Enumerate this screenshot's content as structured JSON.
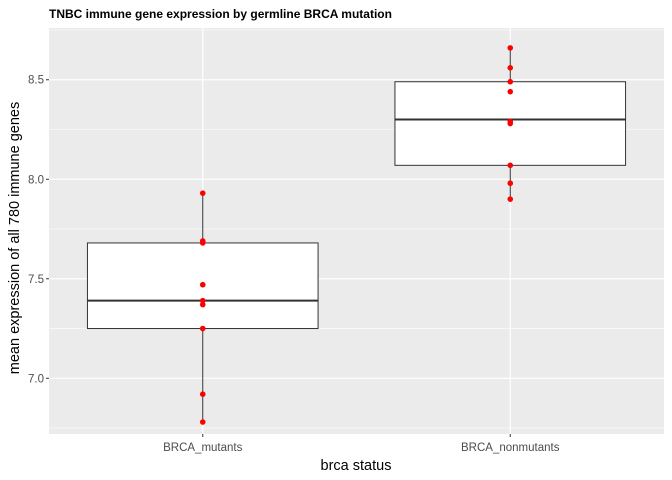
{
  "chart_data": {
    "type": "boxplot",
    "title": "TNBC immune gene expression by germline BRCA mutation",
    "xlabel": "brca status",
    "ylabel": "mean expression of all 780 immune genes",
    "ylim": [
      6.72,
      8.76
    ],
    "y_ticks": [
      "7.0",
      "7.5",
      "8.0",
      "8.5"
    ],
    "grid": true,
    "legend": "none",
    "categories": [
      "BRCA_mutants",
      "BRCA_nonmutants"
    ],
    "boxes": [
      {
        "category": "BRCA_mutants",
        "lower_whisker": 6.78,
        "q1": 7.25,
        "median": 7.39,
        "q3": 7.68,
        "upper_whisker": 7.93
      },
      {
        "category": "BRCA_nonmutants",
        "lower_whisker": 7.9,
        "q1": 8.07,
        "median": 8.3,
        "q3": 8.49,
        "upper_whisker": 8.66
      }
    ],
    "points": [
      {
        "category": "BRCA_mutants",
        "values": [
          6.78,
          6.92,
          7.25,
          7.37,
          7.39,
          7.47,
          7.68,
          7.69,
          7.93
        ]
      },
      {
        "category": "BRCA_nonmutants",
        "values": [
          7.9,
          7.98,
          8.07,
          8.28,
          8.29,
          8.44,
          8.49,
          8.56,
          8.66
        ]
      }
    ],
    "colors": {
      "panel_background": "#ebebeb",
      "grid_major": "#ffffff",
      "box_fill": "#ffffff",
      "box_line": "#333333",
      "point": "#ff0000"
    }
  }
}
